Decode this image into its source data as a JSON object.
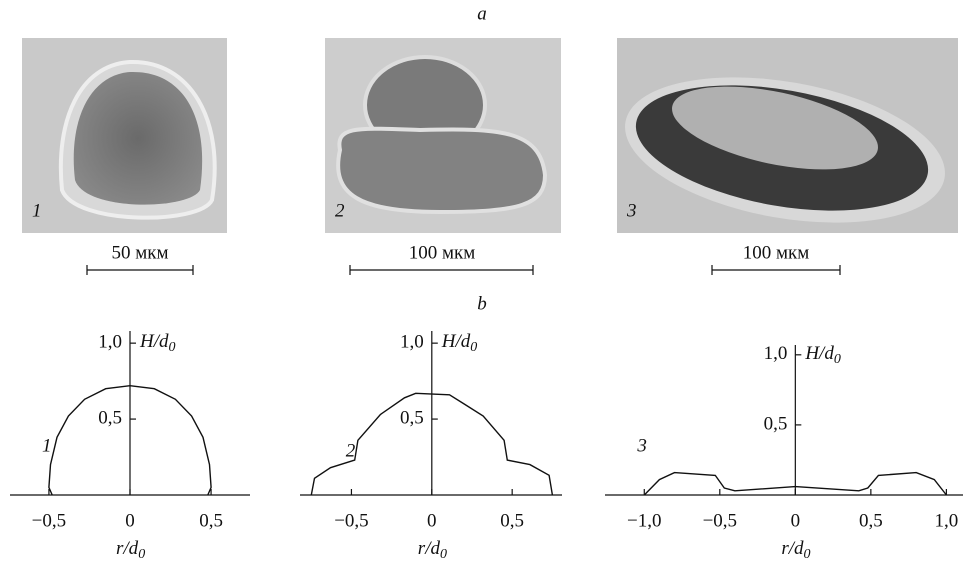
{
  "panel_labels": {
    "a": "a",
    "b": "b"
  },
  "photos": [
    {
      "number": "1",
      "scale": "50 мкм"
    },
    {
      "number": "2",
      "scale": "100 мкм"
    },
    {
      "number": "3",
      "scale": "100 мкм"
    }
  ],
  "chart_data": [
    {
      "type": "line",
      "x_label": {
        "main": "r/d",
        "sub": "0"
      },
      "y_label": {
        "main": "H/d",
        "sub": "0"
      },
      "xlim": [
        -0.74,
        0.74
      ],
      "ylim": [
        0,
        1.08
      ],
      "xticks": [
        {
          "value": -0.5,
          "label": "−0,5"
        },
        0,
        {
          "value": 0.5,
          "label": "0,5"
        }
      ],
      "yticks": [
        {
          "value": 0.5,
          "label": "0,5"
        },
        {
          "value": 1.0,
          "label": "1,0"
        }
      ],
      "series": [
        {
          "name": "1",
          "color": "#111111",
          "x": [
            -0.48,
            -0.5,
            -0.49,
            -0.45,
            -0.38,
            -0.28,
            -0.15,
            0,
            0.15,
            0.28,
            0.38,
            0.45,
            0.49,
            0.5,
            0.48
          ],
          "values": [
            0,
            0.05,
            0.2,
            0.38,
            0.52,
            0.63,
            0.7,
            0.72,
            0.7,
            0.63,
            0.52,
            0.38,
            0.2,
            0.05,
            0
          ]
        }
      ]
    },
    {
      "type": "line",
      "x_label": {
        "main": "r/d",
        "sub": "0"
      },
      "y_label": {
        "main": "H/d",
        "sub": "0"
      },
      "xlim": [
        -0.82,
        0.81
      ],
      "ylim": [
        0,
        1.08
      ],
      "xticks": [
        {
          "value": -0.5,
          "label": "−0,5"
        },
        0,
        {
          "value": 0.5,
          "label": "0,5"
        }
      ],
      "yticks": [
        {
          "value": 0.5,
          "label": "0,5"
        },
        {
          "value": 1.0,
          "label": "1,0"
        }
      ],
      "series": [
        {
          "name": "2",
          "color": "#111111",
          "x": [
            -0.75,
            -0.73,
            -0.63,
            -0.48,
            -0.46,
            -0.32,
            -0.17,
            -0.1,
            0.11,
            0.2,
            0.32,
            0.45,
            0.47,
            0.61,
            0.73,
            0.75
          ],
          "values": [
            0,
            0.11,
            0.18,
            0.23,
            0.36,
            0.53,
            0.64,
            0.67,
            0.66,
            0.6,
            0.52,
            0.36,
            0.23,
            0.2,
            0.13,
            0
          ]
        }
      ]
    },
    {
      "type": "line",
      "x_label": {
        "main": "r/d",
        "sub": "0"
      },
      "y_label": {
        "main": "H/d",
        "sub": "0"
      },
      "xlim": [
        -1.26,
        1.11
      ],
      "ylim": [
        0,
        1.07
      ],
      "xticks": [
        {
          "value": -1.0,
          "label": "−1,0"
        },
        {
          "value": -0.5,
          "label": "−0,5"
        },
        0,
        {
          "value": 0.5,
          "label": "0,5"
        },
        {
          "value": 1.0,
          "label": "1,0"
        }
      ],
      "yticks": [
        {
          "value": 0.5,
          "label": "0,5"
        },
        {
          "value": 1.0,
          "label": "1,0"
        }
      ],
      "series": [
        {
          "name": "3",
          "color": "#111111",
          "x": [
            -1,
            -0.9,
            -0.8,
            -0.53,
            -0.47,
            -0.4,
            0,
            0.42,
            0.48,
            0.55,
            0.8,
            0.92,
            1
          ],
          "values": [
            0,
            0.11,
            0.16,
            0.14,
            0.05,
            0.03,
            0.06,
            0.03,
            0.05,
            0.14,
            0.16,
            0.11,
            0
          ]
        }
      ]
    }
  ]
}
